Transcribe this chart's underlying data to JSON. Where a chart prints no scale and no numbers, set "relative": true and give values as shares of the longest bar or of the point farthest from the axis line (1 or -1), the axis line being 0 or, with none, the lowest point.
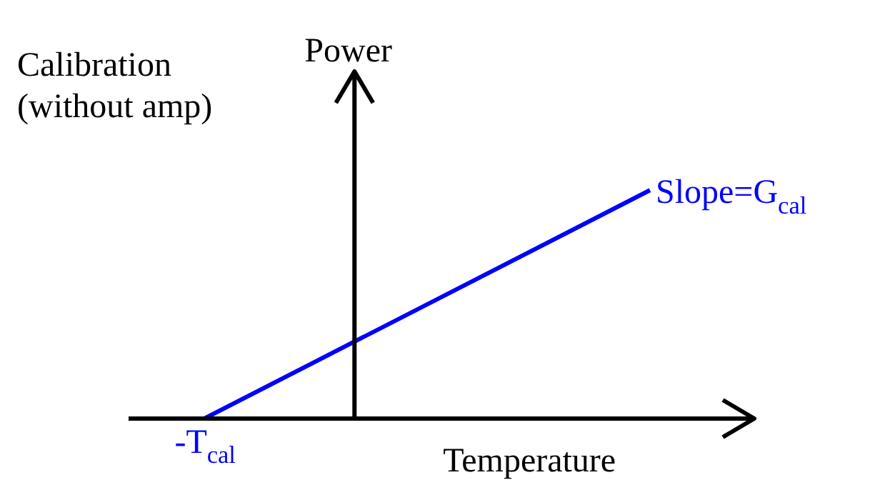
{
  "chart_data": {
    "type": "line",
    "relative": true,
    "xlabel": "Temperature",
    "ylabel": "Power",
    "categories": [
      null,
      null
    ],
    "series": [
      {
        "color": "#0000ff",
        "values": [
          0,
          1
        ]
      }
    ],
    "annotations": [
      "Calibration\n(without amp)",
      "-T$_{cal}$",
      "Slope=G$_{cal}$"
    ],
    "legend": false,
    "marker": "none",
    "line_style": "solid"
  }
}
